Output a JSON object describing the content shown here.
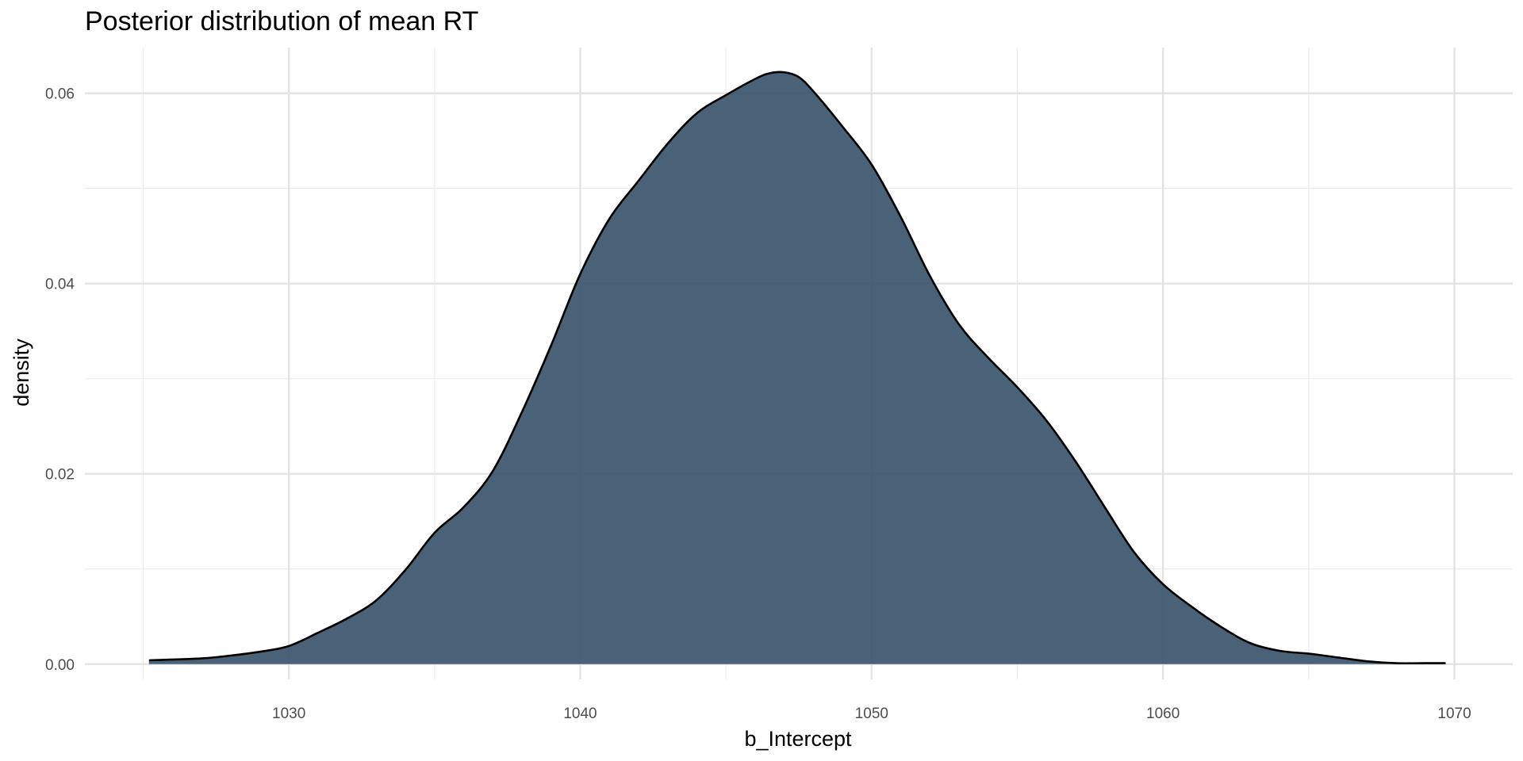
{
  "chart_data": {
    "type": "area",
    "title": "Posterior distribution of mean RT",
    "xlabel": "b_Intercept",
    "ylabel": "density",
    "xlim": [
      1023,
      1072
    ],
    "ylim": [
      -0.0016,
      0.0648
    ],
    "x_ticks": [
      1030,
      1040,
      1050,
      1060,
      1070
    ],
    "x_tick_labels": [
      "1030",
      "1040",
      "1050",
      "1060",
      "1070"
    ],
    "x_minor_ticks": [
      1025,
      1035,
      1045,
      1055,
      1065
    ],
    "y_ticks": [
      0,
      0.02,
      0.04,
      0.06
    ],
    "y_tick_labels": [
      "0.00",
      "0.02",
      "0.04",
      "0.06"
    ],
    "y_minor_ticks": [
      0.01,
      0.03,
      0.05
    ],
    "grid": true,
    "legend": "none",
    "fill_color": "#3A556C",
    "line_color": "#000000",
    "series": [
      {
        "x": [
          1025.2,
          1027,
          1028,
          1029,
          1030,
          1031,
          1032,
          1033,
          1034,
          1035,
          1036,
          1037,
          1038,
          1039,
          1040,
          1041,
          1042,
          1043,
          1044,
          1045,
          1046,
          1046.5,
          1047,
          1047.5,
          1048,
          1049,
          1050,
          1051,
          1052,
          1053,
          1054,
          1055,
          1056,
          1057,
          1058,
          1059,
          1060,
          1061,
          1062,
          1063,
          1064,
          1065,
          1066,
          1067,
          1068,
          1069,
          1069.7
        ],
        "y": [
          0.0004,
          0.0006,
          0.0009,
          0.0013,
          0.0019,
          0.0033,
          0.0048,
          0.0067,
          0.0099,
          0.0138,
          0.0165,
          0.0203,
          0.0265,
          0.0335,
          0.041,
          0.0468,
          0.0508,
          0.0547,
          0.0579,
          0.0598,
          0.0615,
          0.0621,
          0.0622,
          0.0617,
          0.0602,
          0.0565,
          0.0525,
          0.047,
          0.0408,
          0.0357,
          0.0322,
          0.0291,
          0.0256,
          0.0213,
          0.0165,
          0.0118,
          0.0084,
          0.006,
          0.0039,
          0.0022,
          0.0014,
          0.0011,
          0.0007,
          0.0003,
          0.0001,
          0.0001,
          0.0001
        ]
      }
    ]
  }
}
